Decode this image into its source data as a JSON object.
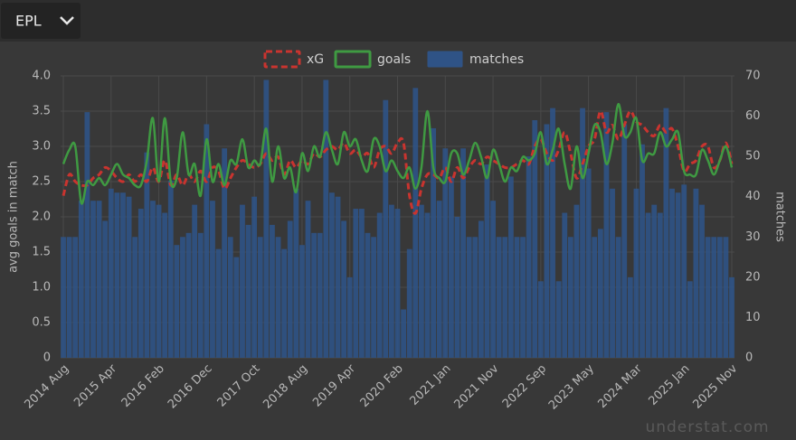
{
  "filter": {
    "label": "EPL"
  },
  "watermark": "understat.com",
  "chart_data": {
    "type": "combo",
    "y_label": "avg goals in match",
    "y2_label": "matches",
    "grid": true,
    "legend": "top",
    "categories": [
      "2014 Aug",
      null,
      null,
      null,
      null,
      null,
      null,
      null,
      "2015 Apr",
      null,
      null,
      null,
      null,
      null,
      null,
      null,
      "2016 Feb",
      null,
      null,
      null,
      null,
      null,
      null,
      null,
      "2016 Dec",
      null,
      null,
      null,
      null,
      null,
      null,
      null,
      "2017 Oct",
      null,
      null,
      null,
      null,
      null,
      null,
      null,
      "2018 Aug",
      null,
      null,
      null,
      null,
      null,
      null,
      null,
      "2019 Apr",
      null,
      null,
      null,
      null,
      null,
      null,
      null,
      "2020 Feb",
      null,
      null,
      null,
      null,
      null,
      null,
      null,
      "2021 Jan",
      null,
      null,
      null,
      null,
      null,
      null,
      null,
      "2021 Nov",
      null,
      null,
      null,
      null,
      null,
      null,
      null,
      "2022 Sep",
      null,
      null,
      null,
      null,
      null,
      null,
      null,
      "2023 May",
      null,
      null,
      null,
      null,
      null,
      null,
      null,
      "2024 Mar",
      null,
      null,
      null,
      null,
      null,
      null,
      null,
      "2025 Jan",
      null,
      null,
      null,
      null,
      null,
      null,
      null,
      "2025 Nov"
    ],
    "ylim": [
      0,
      4
    ],
    "yticks": [
      0,
      0.5,
      {
        "value": 1,
        "label": "1.0"
      },
      1.5,
      {
        "value": 2,
        "label": "2.0"
      },
      2.5,
      {
        "value": 3,
        "label": "3.0"
      },
      3.5,
      {
        "value": 4,
        "label": "4.0"
      }
    ],
    "y2lim": [
      0,
      70
    ],
    "y2ticks": [
      0,
      10,
      20,
      30,
      40,
      50,
      60,
      70
    ],
    "series": [
      {
        "name": "xG",
        "type": "line",
        "dashed": true,
        "color": "#c9342f",
        "values": [
          2.3,
          2.6,
          2.5,
          2.45,
          2.45,
          2.55,
          2.6,
          2.7,
          2.65,
          2.55,
          2.5,
          2.6,
          2.5,
          2.6,
          2.5,
          2.7,
          2.5,
          2.8,
          2.45,
          2.6,
          2.45,
          2.6,
          2.5,
          2.65,
          2.5,
          2.7,
          2.65,
          2.4,
          2.55,
          2.7,
          2.8,
          2.75,
          2.7,
          2.75,
          2.9,
          2.8,
          2.85,
          2.6,
          2.8,
          2.7,
          2.8,
          2.75,
          2.9,
          2.85,
          2.95,
          3.0,
          2.95,
          3.05,
          2.9,
          2.95,
          2.85,
          2.9,
          2.7,
          2.95,
          3.0,
          2.9,
          3.05,
          3.05,
          2.3,
          2.05,
          2.4,
          2.6,
          2.6,
          2.55,
          2.7,
          2.5,
          2.7,
          2.55,
          2.7,
          2.8,
          2.75,
          2.85,
          2.8,
          2.75,
          2.7,
          2.7,
          2.75,
          2.8,
          2.75,
          3.0,
          3.1,
          2.9,
          2.8,
          2.95,
          3.2,
          2.9,
          2.55,
          2.75,
          3.0,
          3.1,
          3.5,
          3.2,
          3.3,
          3.1,
          3.3,
          3.5,
          3.35,
          3.3,
          3.2,
          3.15,
          3.3,
          3.2,
          3.25,
          3.0,
          2.65,
          2.75,
          2.8,
          3.0,
          3.0,
          2.7,
          2.8,
          3.05,
          2.75
        ]
      },
      {
        "name": "goals",
        "type": "line",
        "dashed": false,
        "color": "#3f9a42",
        "values": [
          2.75,
          2.95,
          3.0,
          2.2,
          2.5,
          2.45,
          2.55,
          2.45,
          2.6,
          2.75,
          2.6,
          2.55,
          2.45,
          2.45,
          2.8,
          3.4,
          2.5,
          3.4,
          2.5,
          2.55,
          3.2,
          2.6,
          2.75,
          2.3,
          3.1,
          2.5,
          2.75,
          2.45,
          2.8,
          2.75,
          3.1,
          2.7,
          2.8,
          2.75,
          3.25,
          2.5,
          3.0,
          2.55,
          2.7,
          2.35,
          2.9,
          2.65,
          3.0,
          2.85,
          3.2,
          2.95,
          2.75,
          3.2,
          3.0,
          3.1,
          2.8,
          2.65,
          3.1,
          3.0,
          2.65,
          2.8,
          2.65,
          2.55,
          2.7,
          2.4,
          2.7,
          3.5,
          2.7,
          2.55,
          2.5,
          2.9,
          2.9,
          2.6,
          2.8,
          3.05,
          2.85,
          2.55,
          2.95,
          2.75,
          2.5,
          2.7,
          2.65,
          2.85,
          2.8,
          2.9,
          3.2,
          2.75,
          2.95,
          3.25,
          2.75,
          2.4,
          3.0,
          2.55,
          2.9,
          3.3,
          3.2,
          2.75,
          3.05,
          3.6,
          3.15,
          3.2,
          3.4,
          2.8,
          2.9,
          2.9,
          3.2,
          3.0,
          3.1,
          3.2,
          2.65,
          2.6,
          2.6,
          2.95,
          2.8,
          2.6,
          2.8,
          3.0,
          2.7
        ]
      },
      {
        "name": "matches",
        "type": "bar",
        "axis": "y2",
        "color": "#2f5386",
        "values": [
          30,
          30,
          30,
          39,
          61,
          39,
          39,
          34,
          42,
          41,
          41,
          40,
          30,
          37,
          51,
          39,
          38,
          36,
          44,
          28,
          30,
          31,
          38,
          31,
          58,
          39,
          27,
          52,
          30,
          25,
          38,
          33,
          40,
          30,
          69,
          33,
          30,
          27,
          34,
          42,
          28,
          39,
          31,
          31,
          69,
          41,
          40,
          34,
          20,
          37,
          37,
          31,
          30,
          36,
          64,
          38,
          37,
          12,
          27,
          67,
          38,
          36,
          57,
          39,
          52,
          45,
          35,
          52,
          30,
          30,
          34,
          48,
          39,
          30,
          30,
          45,
          30,
          30,
          50,
          59,
          19,
          58,
          62,
          19,
          36,
          30,
          38,
          62,
          47,
          30,
          32,
          61,
          42,
          30,
          58,
          20,
          42,
          53,
          36,
          38,
          36,
          62,
          42,
          41,
          43,
          19,
          42,
          38,
          30,
          30,
          30,
          30,
          20
        ]
      }
    ]
  }
}
